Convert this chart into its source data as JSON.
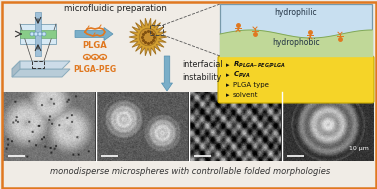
{
  "background_color": "#f0ece6",
  "border_color": "#e07820",
  "orange_color": "#e07820",
  "blue_arrow_color": "#7aaec8",
  "blue_arrow_edge": "#5590b0",
  "micro_prep_label": "microfluidic preparation",
  "plga_label": "PLGA",
  "plga_peg_label": "PLGA-PEG",
  "interfacial_label": "interfacial\ninstability",
  "hydrophilic_label": "hydrophilic",
  "hydrophobic_label": "hydrophobic",
  "yellow_box_color": "#f5d428",
  "yellow_box_edge": "#c8a800",
  "bottom_caption": "monodisperse microspheres with controllable folded morphologies",
  "sem_bg_color": "#111111",
  "scale_bar_label": "10 μm",
  "chip_face_color": "#c8dce8",
  "chip_top_color": "#e0eef8",
  "channel_color": "#90cc88",
  "hydro_sky_color": "#c8dff0",
  "hydro_ground_color": "#c0d898",
  "dashed_box_color": "#666666",
  "caption_color": "#333333",
  "white": "#ffffff"
}
